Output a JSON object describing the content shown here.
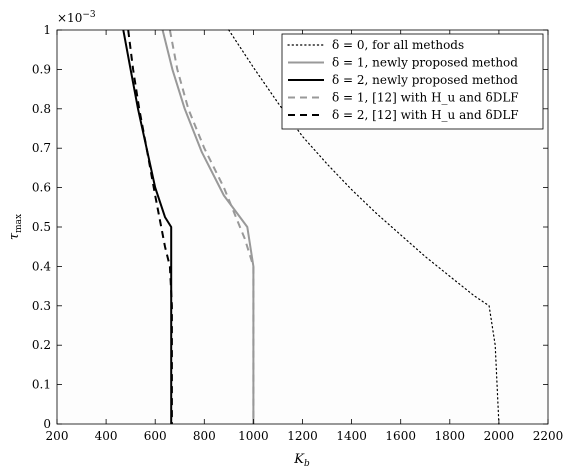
{
  "chart_data": {
    "type": "line",
    "xlabel": "K_b",
    "ylabel": "τ_max",
    "y_multiplier": "×10",
    "y_exponent": "−3",
    "xlim": [
      200,
      2200
    ],
    "ylim": [
      0,
      1
    ],
    "xticks": [
      "200",
      "400",
      "600",
      "800",
      "1000",
      "1200",
      "1400",
      "1600",
      "1800",
      "2000",
      "2200"
    ],
    "yticks": [
      "0",
      "0.1",
      "0.2",
      "0.3",
      "0.4",
      "0.5",
      "0.6",
      "0.7",
      "0.8",
      "0.9",
      "1"
    ],
    "grid": false,
    "legend_position": "top-right",
    "series": [
      {
        "name": "δ = 0, for all methods",
        "color": "#000000",
        "style": "dotted",
        "x": [
          900,
          1000,
          1100,
          1200,
          1300,
          1400,
          1500,
          1600,
          1700,
          1800,
          1900,
          1960,
          1985,
          2000
        ],
        "y": [
          1.0,
          0.905,
          0.815,
          0.73,
          0.66,
          0.595,
          0.535,
          0.48,
          0.425,
          0.375,
          0.325,
          0.3,
          0.2,
          0.0
        ]
      },
      {
        "name": "δ = 1, newly proposed method",
        "color": "#999999",
        "style": "solid",
        "x": [
          630,
          670,
          720,
          790,
          880,
          975,
          1000,
          1000
        ],
        "y": [
          1.0,
          0.9,
          0.8,
          0.69,
          0.58,
          0.5,
          0.4,
          0.0
        ]
      },
      {
        "name": "δ = 2, newly proposed method",
        "color": "#000000",
        "style": "solid",
        "x": [
          470,
          500,
          530,
          565,
          600,
          640,
          665,
          665,
          665
        ],
        "y": [
          1.0,
          0.9,
          0.8,
          0.7,
          0.6,
          0.525,
          0.5,
          0.4,
          0.0
        ]
      },
      {
        "name": "δ = 1, [12] with H_u and δDLF",
        "color": "#999999",
        "style": "dashed",
        "x": [
          660,
          690,
          735,
          800,
          880,
          965,
          1000,
          1000
        ],
        "y": [
          1.0,
          0.9,
          0.8,
          0.7,
          0.6,
          0.47,
          0.4,
          0.0
        ]
      },
      {
        "name": "δ = 2, [12] with H_u and δDLF",
        "color": "#000000",
        "style": "dashed",
        "x": [
          490,
          510,
          535,
          565,
          600,
          640,
          660,
          668,
          668
        ],
        "y": [
          1.0,
          0.9,
          0.8,
          0.7,
          0.58,
          0.45,
          0.4,
          0.3,
          0.0
        ]
      }
    ]
  }
}
